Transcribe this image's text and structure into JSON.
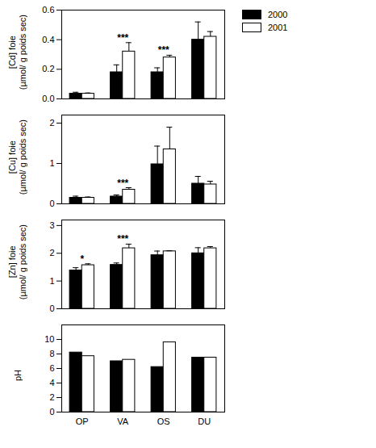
{
  "chart_data": [
    {
      "type": "bar",
      "y_label": "[Cd] foie\n(µmol/ g poids sec)",
      "categories": [
        "OP",
        "VA",
        "OS",
        "DU"
      ],
      "series": [
        {
          "name": "2000",
          "color": "#000000",
          "values": [
            0.035,
            0.18,
            0.18,
            0.4
          ],
          "errors": [
            0.01,
            0.05,
            0.03,
            0.12
          ]
        },
        {
          "name": "2001",
          "color": "#ffffff",
          "values": [
            0.035,
            0.32,
            0.28,
            0.42
          ],
          "errors": [
            0.005,
            0.06,
            0.015,
            0.035
          ]
        }
      ],
      "ylim": [
        0,
        0.6
      ],
      "yticks": [
        {
          "value": 0,
          "label": "0.0"
        },
        {
          "value": 0.2,
          "label": "0.2"
        },
        {
          "value": 0.4,
          "label": "0.4"
        },
        {
          "value": 0.6,
          "label": "0.6"
        }
      ],
      "annotations": [
        {
          "category": "VA",
          "text": "***"
        },
        {
          "category": "OS",
          "text": "***"
        }
      ],
      "tick_labels": "y",
      "legend": "top-right"
    },
    {
      "type": "bar",
      "y_label": "[Cu] foie\n(µmol/ g poids sec)",
      "categories": [
        "OP",
        "VA",
        "OS",
        "DU"
      ],
      "series": [
        {
          "name": "2000",
          "color": "#000000",
          "values": [
            0.15,
            0.18,
            0.98,
            0.5
          ],
          "errors": [
            0.04,
            0.04,
            0.45,
            0.18
          ]
        },
        {
          "name": "2001",
          "color": "#ffffff",
          "values": [
            0.15,
            0.35,
            1.35,
            0.48
          ],
          "errors": [
            0.02,
            0.05,
            0.55,
            0.08
          ]
        }
      ],
      "ylim": [
        0,
        2.2
      ],
      "yticks": [
        0,
        1,
        2
      ],
      "annotations": [
        {
          "category": "VA",
          "text": "***"
        }
      ],
      "tick_labels": "y"
    },
    {
      "type": "bar",
      "y_label": "[Zn] foie\n(µmol/ g poids sec)",
      "categories": [
        "OP",
        "VA",
        "OS",
        "DU"
      ],
      "series": [
        {
          "name": "2000",
          "color": "#000000",
          "values": [
            1.38,
            1.58,
            1.93,
            2.0
          ],
          "errors": [
            0.1,
            0.07,
            0.15,
            0.2
          ]
        },
        {
          "name": "2001",
          "color": "#ffffff",
          "values": [
            1.57,
            2.18,
            2.07,
            2.18
          ],
          "errors": [
            0.05,
            0.15,
            0.02,
            0.06
          ]
        }
      ],
      "ylim": [
        0,
        3.2
      ],
      "yticks": [
        0,
        1,
        2,
        3
      ],
      "annotations": [
        {
          "category": "OP",
          "text": "*"
        },
        {
          "category": "VA",
          "text": "***"
        }
      ],
      "tick_labels": "y"
    },
    {
      "type": "bar",
      "y_label": "pH",
      "categories": [
        "OP",
        "VA",
        "OS",
        "DU"
      ],
      "series": [
        {
          "name": "2000",
          "color": "#000000",
          "values": [
            8.2,
            7.0,
            6.2,
            7.5
          ]
        },
        {
          "name": "2001",
          "color": "#ffffff",
          "values": [
            7.7,
            7.2,
            9.6,
            7.5
          ]
        }
      ],
      "ylim": [
        0,
        12
      ],
      "yticks": [
        0,
        2,
        4,
        6,
        8,
        10
      ]
    }
  ]
}
